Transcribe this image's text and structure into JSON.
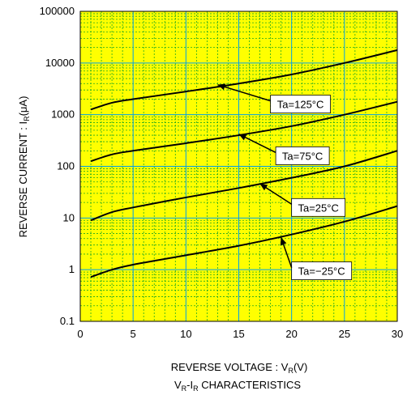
{
  "chart_data": {
    "type": "line",
    "title": "V_R-I_R CHARACTERISTICS",
    "title_parts": {
      "main": "V",
      "sub1": "R",
      "mid": "-I",
      "sub2": "R",
      "rest": " CHARACTERISTICS"
    },
    "xlabel": "REVERSE VOLTAGE : V_R(V)",
    "xlabel_parts": {
      "main": "REVERSE VOLTAGE : V",
      "sub": "R",
      "rest": "(V)"
    },
    "ylabel": "REVERSE CURRENT : I_R(μA)",
    "ylabel_parts": {
      "main": "REVERSE CURRENT : I",
      "sub": "R",
      "rest": "(μA)"
    },
    "xlim": [
      0,
      30
    ],
    "ylim": [
      0.1,
      100000
    ],
    "yscale": "log",
    "grid": true,
    "x_ticks": [
      0,
      5,
      10,
      15,
      20,
      25,
      30
    ],
    "x_tick_labels": [
      "0",
      "5",
      "10",
      "15",
      "20",
      "25",
      "30"
    ],
    "y_ticks": [
      0.1,
      1,
      10,
      100,
      1000,
      10000,
      100000
    ],
    "y_tick_labels": [
      "0.1",
      "1",
      "10",
      "100",
      "1000",
      "10000",
      "100000"
    ],
    "series": [
      {
        "name": "Ta=125°C",
        "x": [
          1,
          3,
          5,
          10,
          15,
          20,
          25,
          30
        ],
        "y": [
          1260,
          1700,
          2000,
          2800,
          4000,
          6000,
          10000,
          17800
        ],
        "label_x": 18,
        "label_y": 1600,
        "arrow_to_x": 13,
        "arrow_to_y": 3800
      },
      {
        "name": "Ta=75°C",
        "x": [
          1,
          3,
          5,
          10,
          15,
          20,
          25,
          30
        ],
        "y": [
          126,
          170,
          200,
          280,
          400,
          600,
          1000,
          1780
        ],
        "label_x": 18.5,
        "label_y": 160,
        "arrow_to_x": 15,
        "arrow_to_y": 420
      },
      {
        "name": "Ta=25°C",
        "x": [
          1,
          3,
          5,
          10,
          15,
          20,
          25,
          30
        ],
        "y": [
          9,
          13,
          16,
          25,
          38,
          60,
          100,
          200
        ],
        "label_x": 20,
        "label_y": 16,
        "arrow_to_x": 17,
        "arrow_to_y": 46
      },
      {
        "name": "Ta=−25°C",
        "x": [
          1,
          3,
          5,
          10,
          15,
          20,
          25,
          30
        ],
        "y": [
          0.72,
          1.0,
          1.25,
          1.9,
          2.9,
          4.8,
          8.5,
          17
        ],
        "label_x": 20,
        "label_y": 0.95,
        "arrow_to_x": 19,
        "arrow_to_y": 4.2
      }
    ]
  }
}
